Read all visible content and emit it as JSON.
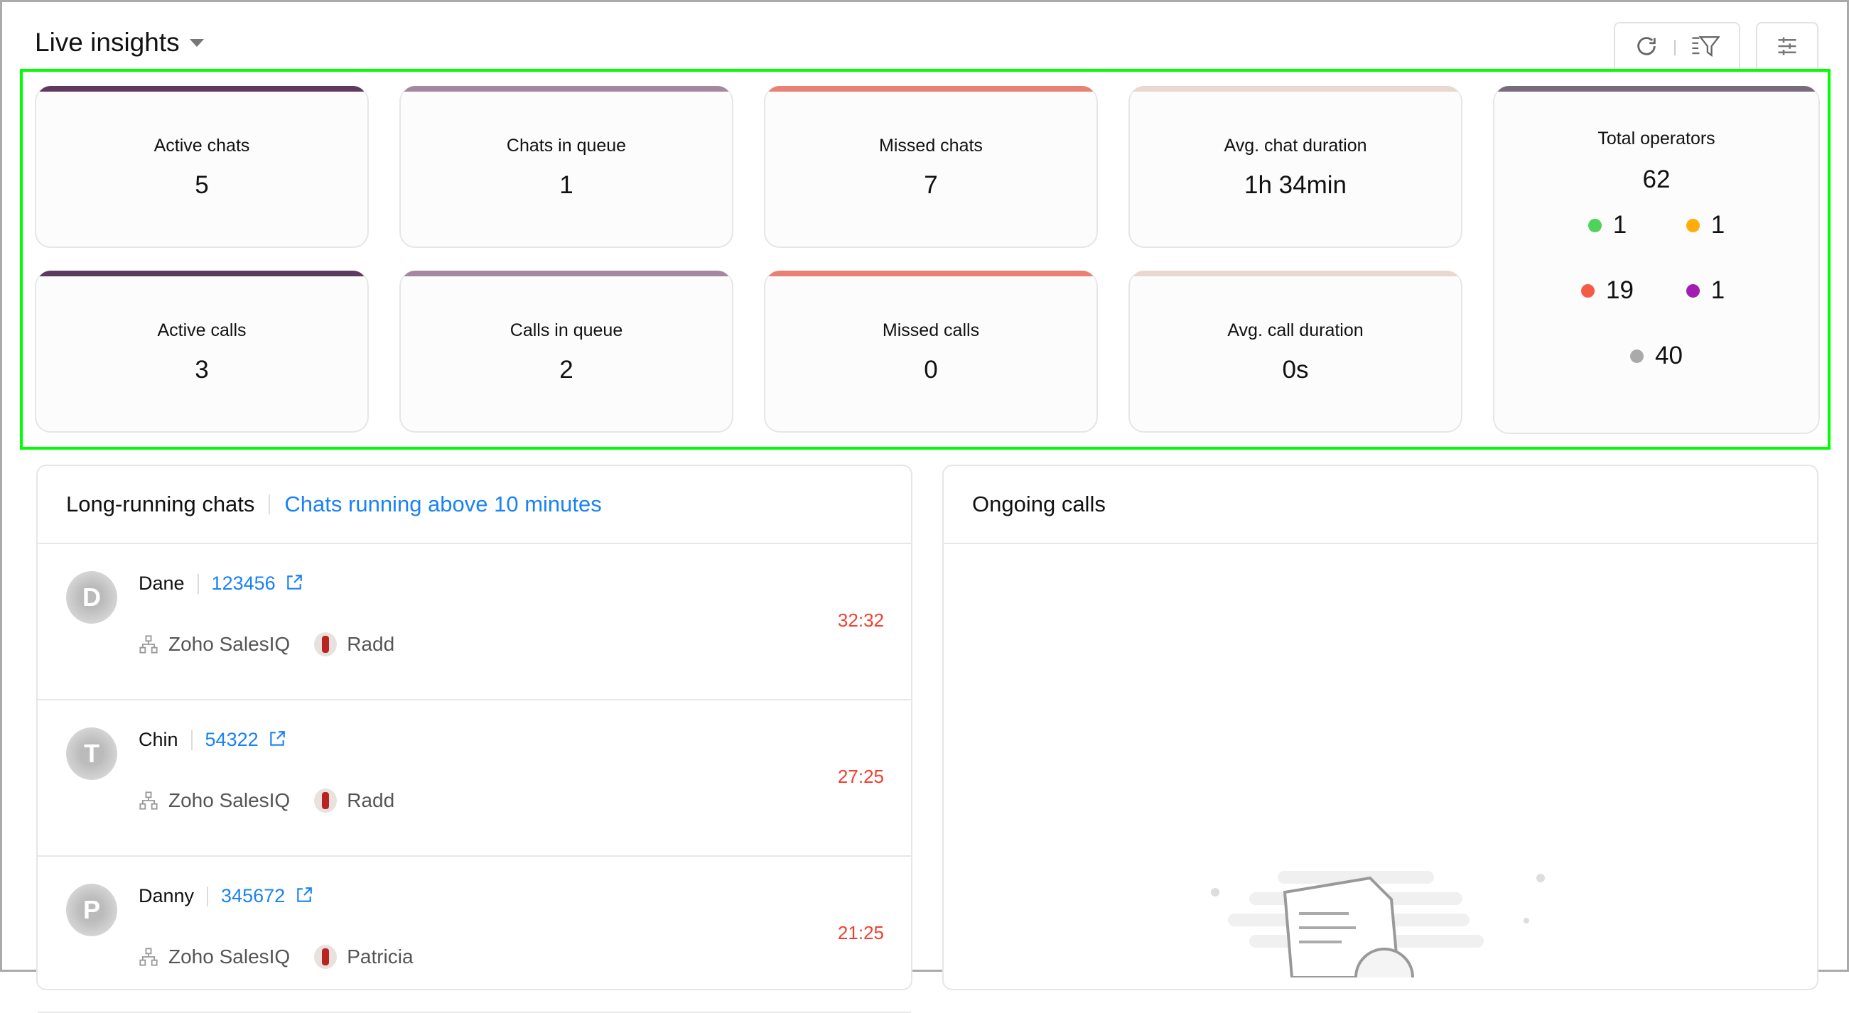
{
  "header": {
    "title": "Live insights",
    "refresh_icon": "refresh-icon",
    "filter_icon": "filter-icon",
    "settings_icon": "sliders-icon"
  },
  "metrics": [
    {
      "label": "Active chats",
      "value": "5",
      "color": "#5e3a5e"
    },
    {
      "label": "Chats in queue",
      "value": "1",
      "color": "#a4889f"
    },
    {
      "label": "Missed chats",
      "value": "7",
      "color": "#e88074"
    },
    {
      "label": "Avg. chat duration",
      "value": "1h 34min",
      "color": "#ead7cf"
    },
    {
      "label": "Active calls",
      "value": "3",
      "color": "#5e3a5e"
    },
    {
      "label": "Calls in queue",
      "value": "2",
      "color": "#a4889f"
    },
    {
      "label": "Missed calls",
      "value": "0",
      "color": "#e88074"
    },
    {
      "label": "Avg. call duration",
      "value": "0s",
      "color": "#ead7cf"
    }
  ],
  "operators": {
    "label": "Total operators",
    "total": "62",
    "color": "#7a6a7e",
    "statuses": [
      {
        "count": "1",
        "color": "#4cd35a"
      },
      {
        "count": "1",
        "color": "#ffad0a"
      },
      {
        "count": "19",
        "color": "#f55a45"
      },
      {
        "count": "1",
        "color": "#a11fb0"
      },
      {
        "count": "40",
        "color": "#aaaaaa"
      }
    ]
  },
  "long_running": {
    "title": "Long-running chats",
    "filter_link": "Chats running above 10 minutes",
    "rows": [
      {
        "initial": "D",
        "name": "Dane",
        "id": "123456",
        "brand": "Zoho SalesIQ",
        "operator": "Radd",
        "time": "32:32"
      },
      {
        "initial": "T",
        "name": "Chin",
        "id": "54322",
        "brand": "Zoho SalesIQ",
        "operator": "Radd",
        "time": "27:25"
      },
      {
        "initial": "P",
        "name": "Danny",
        "id": "345672",
        "brand": "Zoho SalesIQ",
        "operator": "Patricia",
        "time": "21:25"
      }
    ]
  },
  "ongoing_calls": {
    "title": "Ongoing calls"
  }
}
